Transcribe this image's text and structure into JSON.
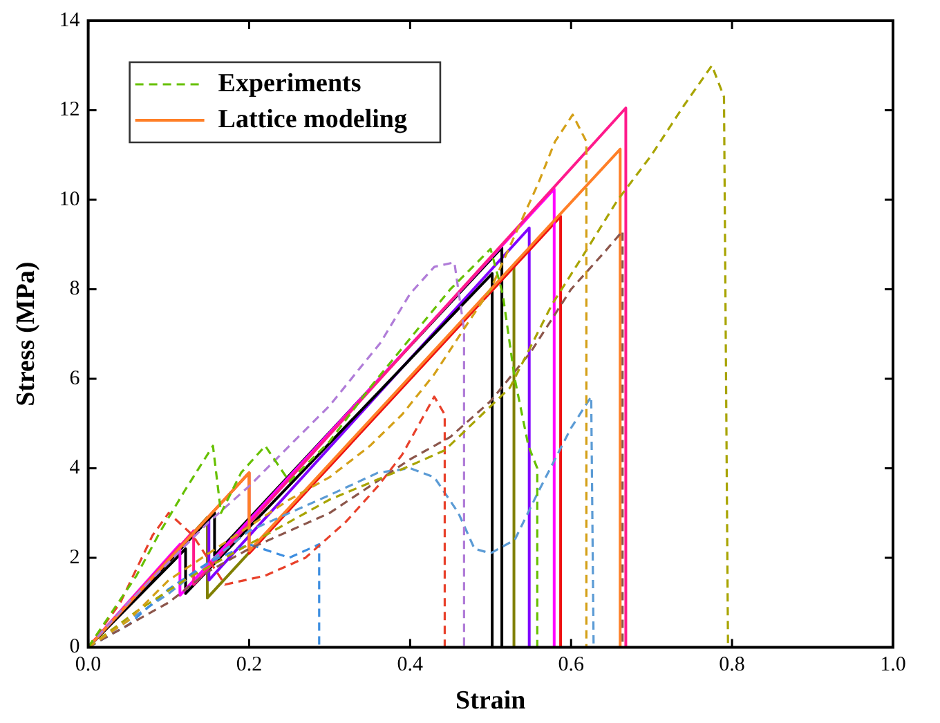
{
  "chart_data": {
    "type": "line",
    "xlabel": "Strain",
    "ylabel": "Stress (MPa)",
    "xlim": [
      0,
      1
    ],
    "ylim": [
      0,
      14
    ],
    "xticks": [
      {
        "value": 0,
        "label": "0.0"
      },
      0.2,
      0.4,
      0.6,
      0.8,
      {
        "value": 1,
        "label": "1.0"
      }
    ],
    "yticks": [
      0,
      2,
      4,
      6,
      8,
      10,
      12,
      14
    ],
    "grid": false,
    "legend": "top left",
    "marker": "none",
    "series": [
      {
        "name": "Experiments",
        "color": "#66c000",
        "line_style": "dashed",
        "x": [
          0,
          0.03,
          0.06,
          0.09,
          0.12,
          0.155,
          0.165,
          0.19,
          0.22,
          0.25,
          0.3,
          0.35,
          0.4,
          0.45,
          0.5,
          0.515,
          0.53,
          0.547,
          0.558,
          0.558
        ],
        "values": [
          0,
          0.8,
          1.6,
          2.6,
          3.5,
          4.5,
          3.0,
          3.9,
          4.5,
          3.7,
          4.6,
          5.8,
          6.9,
          8.0,
          8.9,
          7.9,
          6.0,
          4.5,
          4.0,
          0
        ]
      },
      {
        "color": "#d4a017",
        "line_style": "dashed",
        "x": [
          0,
          0.05,
          0.1,
          0.15,
          0.2,
          0.25,
          0.3,
          0.35,
          0.39,
          0.43,
          0.47,
          0.5,
          0.53,
          0.56,
          0.58,
          0.602,
          0.619,
          0.619
        ],
        "values": [
          0,
          0.6,
          1.5,
          2.1,
          2.7,
          3.3,
          3.8,
          4.5,
          5.2,
          6.1,
          7.2,
          8.0,
          9.2,
          10.4,
          11.3,
          11.9,
          11.3,
          0
        ]
      },
      {
        "color": "#a8a400",
        "line_style": "dashed",
        "x": [
          0,
          0.06,
          0.12,
          0.2,
          0.3,
          0.38,
          0.443,
          0.524,
          0.576,
          0.62,
          0.657,
          0.7,
          0.74,
          0.775,
          0.79,
          0.795
        ],
        "values": [
          0,
          0.8,
          1.5,
          2.3,
          3.3,
          3.9,
          4.4,
          5.8,
          7.65,
          8.9,
          9.97,
          11.0,
          12.1,
          13.0,
          12.3,
          0
        ]
      },
      {
        "color": "#b07cd8",
        "line_style": "dashed",
        "x": [
          0,
          0.05,
          0.1,
          0.15,
          0.2,
          0.25,
          0.3,
          0.363,
          0.4,
          0.43,
          0.455,
          0.467,
          0.467
        ],
        "values": [
          0,
          1.0,
          1.9,
          2.8,
          3.6,
          4.5,
          5.4,
          6.8,
          7.9,
          8.5,
          8.6,
          7.1,
          0
        ]
      },
      {
        "color": "#8c564b",
        "line_style": "dashed",
        "x": [
          0,
          0.1,
          0.15,
          0.2,
          0.3,
          0.35,
          0.4,
          0.45,
          0.5,
          0.55,
          0.6,
          0.64,
          0.664,
          0.664
        ],
        "values": [
          0,
          1.0,
          1.7,
          2.2,
          3.0,
          3.6,
          4.2,
          4.7,
          5.5,
          6.6,
          8.0,
          8.8,
          9.3,
          0
        ]
      },
      {
        "color": "#e8402a",
        "line_style": "dashed",
        "x": [
          0,
          0.04,
          0.08,
          0.1,
          0.13,
          0.17,
          0.22,
          0.27,
          0.32,
          0.36,
          0.39,
          0.43,
          0.443,
          0.443
        ],
        "values": [
          0,
          1.0,
          2.5,
          3.0,
          2.5,
          1.4,
          1.6,
          2.0,
          2.8,
          3.6,
          4.3,
          5.6,
          5.2,
          0
        ]
      },
      {
        "color": "#3d8ee0",
        "line_style": "dashed",
        "x": [
          0,
          0.05,
          0.1,
          0.15,
          0.2,
          0.25,
          0.287,
          0.287
        ],
        "values": [
          0,
          0.5,
          1.3,
          1.9,
          2.3,
          2.0,
          2.3,
          0
        ]
      },
      {
        "color": "#5b9bd5",
        "line_style": "dashed",
        "x": [
          0,
          0.1,
          0.2,
          0.3,
          0.36,
          0.4,
          0.43,
          0.46,
          0.48,
          0.5,
          0.53,
          0.56,
          0.6,
          0.625,
          0.628
        ],
        "values": [
          0,
          1.2,
          2.6,
          3.4,
          3.9,
          4.0,
          3.8,
          3.0,
          2.2,
          2.1,
          2.4,
          3.5,
          4.9,
          5.6,
          0
        ]
      },
      {
        "name": "Lattice modeling",
        "color": "#ff7f27",
        "line_style": "solid",
        "x": [
          0,
          0.2,
          0.2,
          0.661,
          0.661
        ],
        "values": [
          0,
          3.9,
          2.15,
          11.13,
          0
        ]
      },
      {
        "color": "#ff1a8c",
        "line_style": "solid",
        "x": [
          0,
          0.131,
          0.131,
          0.668,
          0.668
        ],
        "values": [
          0,
          2.6,
          1.4,
          12.05,
          0
        ]
      },
      {
        "color": "#ff00ff",
        "line_style": "solid",
        "x": [
          0,
          0.114,
          0.114,
          0.579,
          0.579
        ],
        "values": [
          0,
          2.3,
          1.16,
          10.24,
          0
        ]
      },
      {
        "color": "#ee1111",
        "line_style": "solid",
        "x": [
          0,
          0.2,
          0.2,
          0.587,
          0.587
        ],
        "values": [
          0,
          3.9,
          2.1,
          9.63,
          0
        ]
      },
      {
        "color": "#000000",
        "line_style": "solid",
        "x": [
          0,
          0.121,
          0.121,
          0.502,
          0.502
        ],
        "values": [
          0,
          2.2,
          1.2,
          8.35,
          0
        ]
      },
      {
        "color": "#000000",
        "line_style": "solid",
        "x": [
          0,
          0.157,
          0.157,
          0.514,
          0.514
        ],
        "values": [
          0,
          3.0,
          2.05,
          8.93,
          0
        ]
      },
      {
        "color": "#8000ff",
        "line_style": "solid",
        "x": [
          0,
          0.15,
          0.15,
          0.548,
          0.548
        ],
        "values": [
          0,
          2.9,
          1.5,
          9.37,
          0
        ]
      },
      {
        "color": "#808000",
        "line_style": "solid",
        "x": [
          0,
          0.148,
          0.148,
          0.529,
          0.529
        ],
        "values": [
          0,
          2.9,
          1.1,
          8.54,
          0
        ]
      }
    ]
  }
}
